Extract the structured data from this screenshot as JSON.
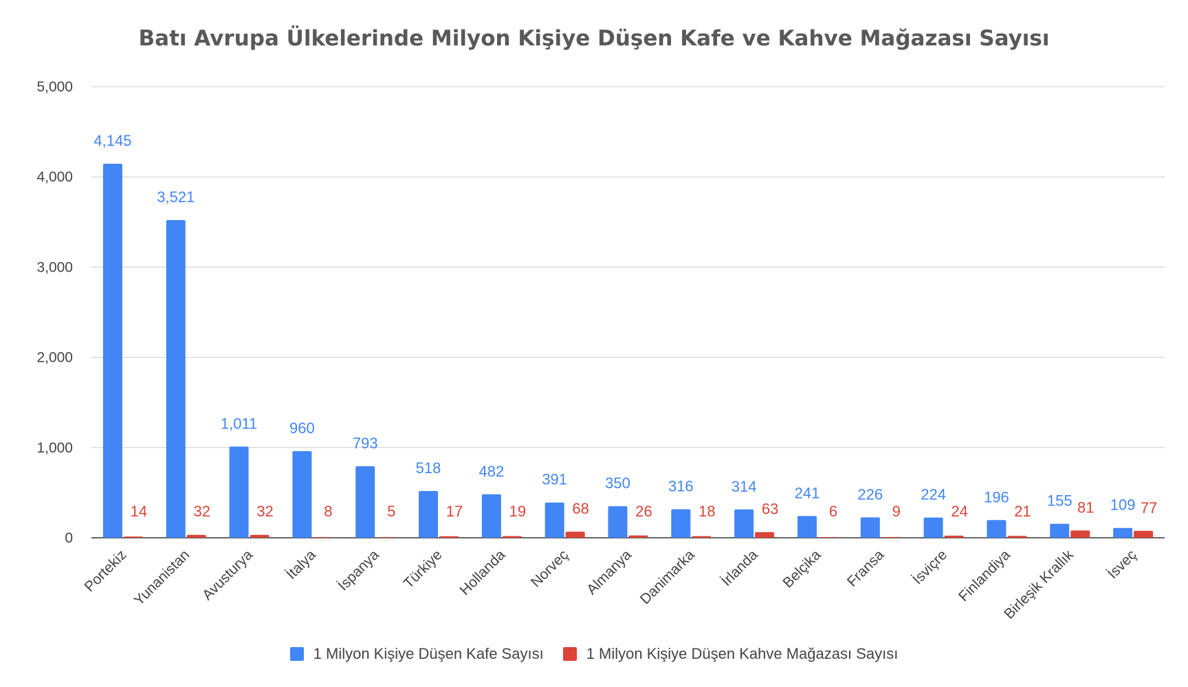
{
  "chart_data": {
    "type": "bar",
    "title": "Batı Avrupa Ülkelerinde Milyon Kişiye Düşen Kafe ve Kahve Mağazası Sayısı",
    "xlabel": "",
    "ylabel": "",
    "ylim": [
      0,
      5000
    ],
    "yticks": [
      "0",
      "1,000",
      "2,000",
      "3,000",
      "4,000",
      "5,000"
    ],
    "ytick_values": [
      0,
      1000,
      2000,
      3000,
      4000,
      5000
    ],
    "grid": true,
    "legend_position": "bottom",
    "categories": [
      "Portekiz",
      "Yunanistan",
      "Avusturya",
      "İtalya",
      "İspanya",
      "Türkiye",
      "Hollanda",
      "Norveç",
      "Almanya",
      "Danimarka",
      "İrlanda",
      "Belçika",
      "Fransa",
      "İsviçre",
      "Finlandiya",
      "Birleşik Krallık",
      "İsveç"
    ],
    "series": [
      {
        "name": "1 Milyon Kişiye Düşen Kafe Sayısı",
        "color": "#4285f4",
        "values": [
          4145,
          3521,
          1011,
          960,
          793,
          518,
          482,
          391,
          350,
          316,
          314,
          241,
          226,
          224,
          196,
          155,
          109
        ],
        "labels": [
          "4,145",
          "3,521",
          "1,011",
          "960",
          "793",
          "518",
          "482",
          "391",
          "350",
          "316",
          "314",
          "241",
          "226",
          "224",
          "196",
          "155",
          "109"
        ]
      },
      {
        "name": "1 Milyon Kişiye Düşen Kahve Mağazası Sayısı",
        "color": "#db4437",
        "values": [
          14,
          32,
          32,
          8,
          5,
          17,
          19,
          68,
          26,
          18,
          63,
          6,
          9,
          24,
          21,
          81,
          77
        ],
        "labels": [
          "14",
          "32",
          "32",
          "8",
          "5",
          "17",
          "19",
          "68",
          "26",
          "18",
          "63",
          "6",
          "9",
          "24",
          "21",
          "81",
          "77"
        ]
      }
    ]
  }
}
